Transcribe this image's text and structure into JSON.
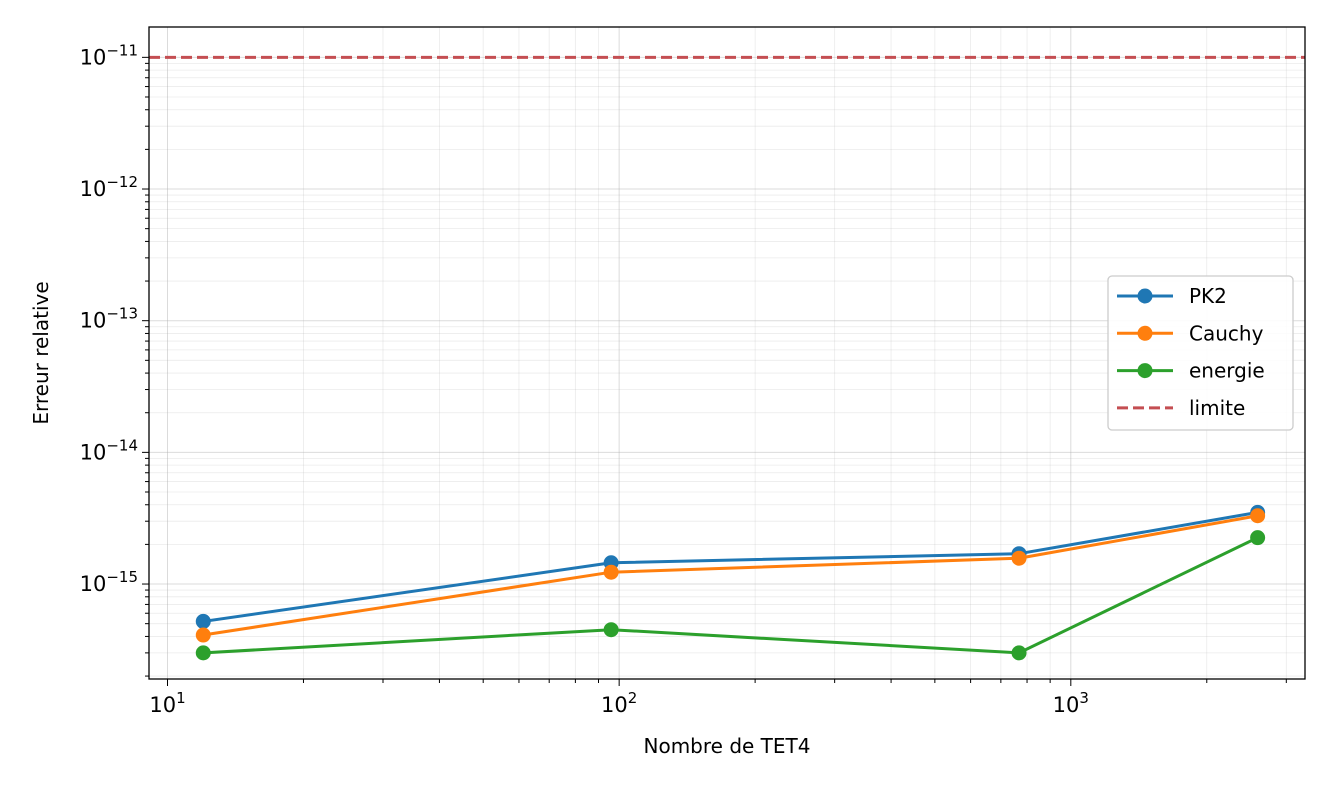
{
  "chart_data": {
    "type": "line",
    "xlabel": "Nombre de TET4",
    "ylabel": "Erreur relative",
    "xscale": "log",
    "yscale": "log",
    "xlim": [
      9.1,
      3300
    ],
    "ylim": [
      1.9e-16,
      1.7e-11
    ],
    "x_ticks": [
      {
        "value": 10,
        "base": "10",
        "exp": "1"
      },
      {
        "value": 100,
        "base": "10",
        "exp": "2"
      },
      {
        "value": 1000,
        "base": "10",
        "exp": "3"
      }
    ],
    "y_ticks": [
      {
        "value": 1e-15,
        "base": "10",
        "exp": "−15"
      },
      {
        "value": 1e-14,
        "base": "10",
        "exp": "−14"
      },
      {
        "value": 1e-13,
        "base": "10",
        "exp": "−13"
      },
      {
        "value": 1e-12,
        "base": "10",
        "exp": "−12"
      },
      {
        "value": 1e-11,
        "base": "10",
        "exp": "−11"
      }
    ],
    "grid": true,
    "grid_minor": true,
    "legend_position": "center-right",
    "x": [
      12,
      96,
      768,
      2592
    ],
    "series": [
      {
        "name": "PK2",
        "color": "#1f77b4",
        "marker": "circle",
        "linestyle": "solid",
        "values": [
          5.2e-16,
          1.45e-15,
          1.7e-15,
          3.5e-15
        ]
      },
      {
        "name": "Cauchy",
        "color": "#ff7f0e",
        "marker": "circle",
        "linestyle": "solid",
        "values": [
          4.1e-16,
          1.23e-15,
          1.57e-15,
          3.3e-15
        ]
      },
      {
        "name": "energie",
        "color": "#2ca02c",
        "marker": "circle",
        "linestyle": "solid",
        "values": [
          3e-16,
          4.5e-16,
          3e-16,
          2.25e-15
        ]
      }
    ],
    "hlines": [
      {
        "name": "limite",
        "y": 1e-11,
        "color": "#c44e52",
        "linestyle": "dashed"
      }
    ]
  }
}
